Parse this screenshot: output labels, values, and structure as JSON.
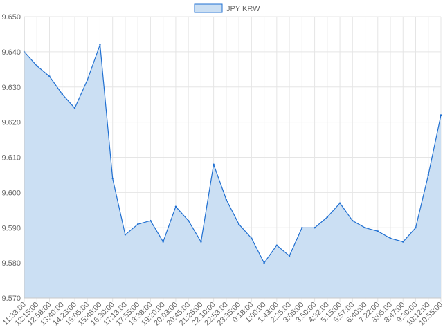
{
  "chart_data": {
    "type": "area",
    "legend": {
      "position": "top",
      "entries": [
        "JPY KRW"
      ]
    },
    "series": [
      {
        "name": "JPY KRW",
        "color": "#1f6fd1",
        "fill": "#cbdff3",
        "x": [
          "11:33:00",
          "12:15:00",
          "12:58:00",
          "13:40:00",
          "14:23:00",
          "15:05:00",
          "15:48:00",
          "16:30:00",
          "17:13:00",
          "17:55:00",
          "18:38:00",
          "19:20:00",
          "20:03:00",
          "20:45:00",
          "21:28:00",
          "22:10:00",
          "22:53:00",
          "23:35:00",
          "0:18:00",
          "1:00:00",
          "1:43:00",
          "2:25:00",
          "3:08:00",
          "3:50:00",
          "4:32:00",
          "5:15:00",
          "5:57:00",
          "6:40:00",
          "7:22:00",
          "8:05:00",
          "8:47:00",
          "9:30:00",
          "10:12:00",
          "10:55:00"
        ],
        "values": [
          9.64,
          9.636,
          9.633,
          9.628,
          9.624,
          9.632,
          9.642,
          9.604,
          9.588,
          9.591,
          9.592,
          9.586,
          9.596,
          9.592,
          9.586,
          9.608,
          9.598,
          9.591,
          9.587,
          9.58,
          9.585,
          9.582,
          9.59,
          9.59,
          9.593,
          9.597,
          9.592,
          9.59,
          9.589,
          9.587,
          9.586,
          9.59,
          9.605,
          9.622
        ]
      }
    ],
    "ylim": [
      9.57,
      9.65
    ],
    "yticks": [
      "9.650",
      "9.640",
      "9.630",
      "9.620",
      "9.610",
      "9.600",
      "9.590",
      "9.580",
      "9.570"
    ],
    "grid": true
  }
}
